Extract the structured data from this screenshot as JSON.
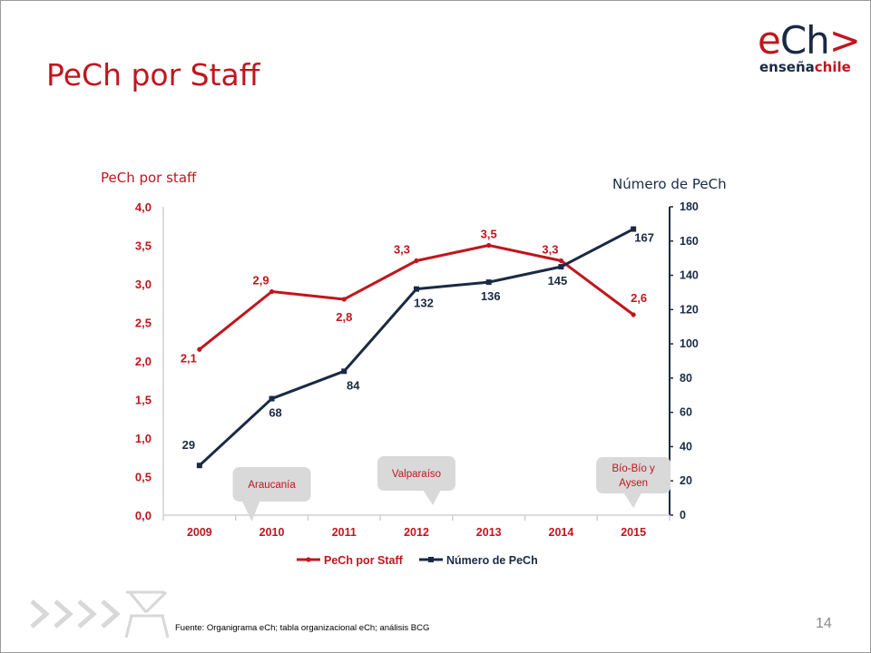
{
  "slide": {
    "title": "PeCh por Staff",
    "logo": {
      "main_e": "e",
      "main_ch": "Ch",
      "main_gt": ">",
      "sub_a": "enseña",
      "sub_b": "chile"
    },
    "source": "Fuente: Organigrama eCh; tabla organizacional eCh; análisis BCG",
    "page_number": "14",
    "colors": {
      "red": "#c0161e",
      "navy": "#1a2a44",
      "callout": "#d9d9d9"
    }
  },
  "chart_data": {
    "type": "line",
    "categories": [
      "2009",
      "2010",
      "2011",
      "2012",
      "2013",
      "2014",
      "2015"
    ],
    "y_axis_left": {
      "label": "PeCh por staff",
      "range": [
        0,
        4
      ],
      "ticks": [
        "0,0",
        "0,5",
        "1,0",
        "1,5",
        "2,0",
        "2,5",
        "3,0",
        "3,5",
        "4,0"
      ]
    },
    "y_axis_right": {
      "label": "Número de PeCh",
      "range": [
        0,
        180
      ],
      "ticks": [
        "0",
        "20",
        "40",
        "60",
        "80",
        "100",
        "120",
        "140",
        "160",
        "180"
      ]
    },
    "series": [
      {
        "name": "PeCh por Staff",
        "axis": "left",
        "color": "#c0161e",
        "values": [
          2.15,
          2.9,
          2.8,
          3.3,
          3.5,
          3.3,
          2.6
        ],
        "labels": [
          "2,1",
          "2,9",
          "2,8",
          "3,3",
          "3,5",
          "3,3",
          "2,6"
        ]
      },
      {
        "name": "Número de PeCh",
        "axis": "right",
        "color": "#1a2a44",
        "values": [
          29,
          68,
          84,
          132,
          136,
          145,
          167
        ],
        "labels": [
          "29",
          "68",
          "84",
          "132",
          "136",
          "145",
          "167"
        ]
      }
    ],
    "callouts": [
      {
        "text": [
          "Araucanía"
        ],
        "category": "2010"
      },
      {
        "text": [
          "Valparaíso"
        ],
        "category": "2012"
      },
      {
        "text": [
          "Bío-Bío y",
          "Aysen"
        ],
        "category": "2015"
      }
    ],
    "legend": {
      "position": "bottom"
    },
    "grid": false
  }
}
